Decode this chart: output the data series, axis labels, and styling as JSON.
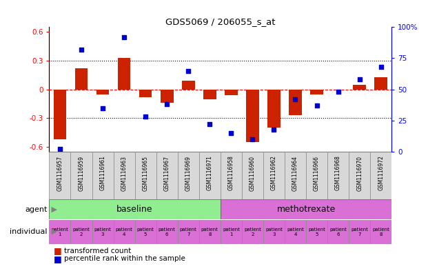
{
  "title": "GDS5069 / 206055_s_at",
  "samples": [
    "GSM1116957",
    "GSM1116959",
    "GSM1116961",
    "GSM1116963",
    "GSM1116965",
    "GSM1116967",
    "GSM1116969",
    "GSM1116971",
    "GSM1116958",
    "GSM1116960",
    "GSM1116962",
    "GSM1116964",
    "GSM1116966",
    "GSM1116968",
    "GSM1116970",
    "GSM1116972"
  ],
  "transformed_count": [
    -0.52,
    0.22,
    -0.05,
    0.33,
    -0.08,
    -0.14,
    0.09,
    -0.1,
    -0.06,
    -0.55,
    -0.4,
    -0.27,
    -0.05,
    0.0,
    0.05,
    0.13
  ],
  "percentile_rank": [
    2,
    82,
    35,
    92,
    28,
    38,
    65,
    22,
    15,
    10,
    18,
    42,
    37,
    48,
    58,
    68
  ],
  "bar_color": "#CC2200",
  "dot_color": "#0000CC",
  "ylim_left": [
    -0.65,
    0.65
  ],
  "ylim_right": [
    0,
    100
  ],
  "yticks_left": [
    -0.6,
    -0.3,
    0.0,
    0.3,
    0.6
  ],
  "yticks_right": [
    0,
    25,
    50,
    75,
    100
  ],
  "hlines_dotted": [
    -0.3,
    0.3
  ],
  "hline_dashed": 0.0,
  "sample_box_color": "#d0d0d0",
  "baseline_color": "#90EE90",
  "methotrexate_color": "#DA70D6",
  "individual_color": "#DA70D6",
  "legend_items": [
    "transformed count",
    "percentile rank within the sample"
  ],
  "patients": [
    "patient\n1",
    "patient\n2",
    "patient\n3",
    "patient\n4",
    "patient\n5",
    "patient\n6",
    "patient\n7",
    "patient\n8"
  ]
}
